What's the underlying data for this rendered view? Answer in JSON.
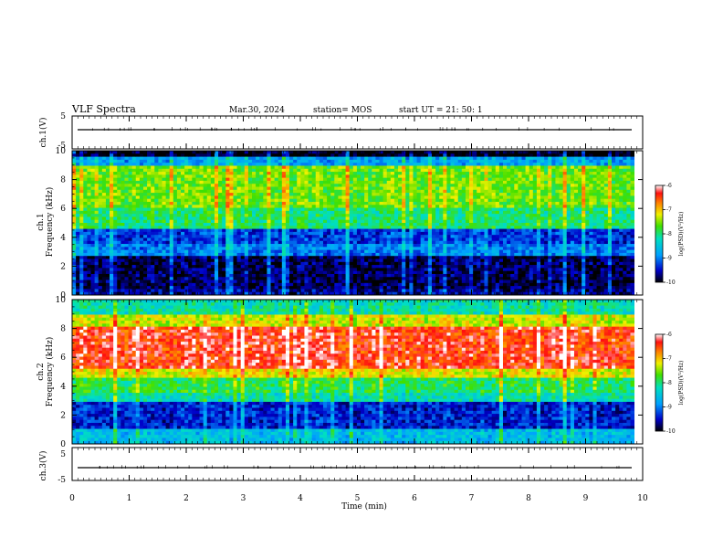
{
  "header": {
    "title": "VLF Spectra",
    "date": "Mar.30, 2024",
    "station": "station= MOS",
    "start": "start  UT =   21: 50: 1"
  },
  "chart_data": [
    {
      "type": "line",
      "name": "ch1-waveform",
      "ylabel": "ch.1(V)",
      "ylim": [
        -5,
        5
      ],
      "yticks": [
        "5",
        "-5"
      ],
      "x": [
        0,
        10
      ],
      "y": [
        0,
        0
      ]
    },
    {
      "type": "heatmap",
      "name": "ch1-spectrogram",
      "ylabel": "ch.1\nFrequency (kHz)",
      "ylim": [
        0,
        10
      ],
      "yticks": [
        "0",
        "2",
        "4",
        "6",
        "8",
        "10"
      ],
      "xlim": [
        0,
        9.85
      ],
      "colorbar": {
        "label": "log(PSD)(V²/Hz)",
        "range": [
          -10,
          -6
        ],
        "ticks": [
          "-6",
          "-7",
          "-8",
          "-9",
          "-10"
        ]
      },
      "bands": [
        {
          "fmin": 0,
          "fmax": 0.5,
          "level": -9.6
        },
        {
          "fmin": 0.5,
          "fmax": 2.7,
          "level": -9.8
        },
        {
          "fmin": 2.7,
          "fmax": 3.6,
          "level": -9.0
        },
        {
          "fmin": 3.6,
          "fmax": 4.5,
          "level": -9.3
        },
        {
          "fmin": 4.5,
          "fmax": 6.0,
          "level": -8.0
        },
        {
          "fmin": 6.0,
          "fmax": 9.0,
          "level": -7.6
        },
        {
          "fmin": 9.0,
          "fmax": 9.5,
          "level": -8.8
        },
        {
          "fmin": 9.5,
          "fmax": 10,
          "level": -10
        }
      ]
    },
    {
      "type": "heatmap",
      "name": "ch2-spectrogram",
      "ylabel": "ch.2\nFrequency (kHz)",
      "ylim": [
        0,
        10
      ],
      "yticks": [
        "0",
        "2",
        "4",
        "6",
        "8",
        "10"
      ],
      "xlim": [
        0,
        9.85
      ],
      "colorbar": {
        "label": "log(PSD)(V²/Hz)",
        "range": [
          -10,
          -6
        ],
        "ticks": [
          "-6",
          "-7",
          "-8",
          "-9",
          "-10"
        ]
      },
      "bands": [
        {
          "fmin": 0,
          "fmax": 1.0,
          "level": -8.6
        },
        {
          "fmin": 1.0,
          "fmax": 3.0,
          "level": -9.4
        },
        {
          "fmin": 3.0,
          "fmax": 3.5,
          "level": -8.2
        },
        {
          "fmin": 3.5,
          "fmax": 4.5,
          "level": -7.9
        },
        {
          "fmin": 4.5,
          "fmax": 5.3,
          "level": -7.2
        },
        {
          "fmin": 5.3,
          "fmax": 8.2,
          "level": -6.4
        },
        {
          "fmin": 8.2,
          "fmax": 9.0,
          "level": -7.3
        },
        {
          "fmin": 9.0,
          "fmax": 10,
          "level": -8.2
        }
      ]
    },
    {
      "type": "line",
      "name": "ch3-waveform",
      "ylabel": "ch.3(V)",
      "ylim": [
        -5,
        5
      ],
      "yticks": [
        "5",
        "-5"
      ],
      "x": [
        0,
        10
      ],
      "y": [
        0,
        0
      ]
    }
  ],
  "xaxis": {
    "label": "Time (min)",
    "ticks": [
      "0",
      "1",
      "2",
      "3",
      "4",
      "5",
      "6",
      "7",
      "8",
      "9",
      "10"
    ],
    "xlim": [
      0,
      10
    ]
  }
}
